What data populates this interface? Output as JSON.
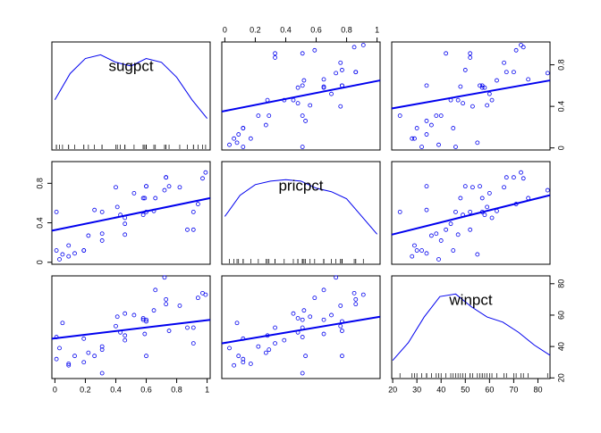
{
  "chart_data": {
    "type": "scatter_matrix",
    "color": "#0000ee",
    "variables": [
      {
        "name": "sugpct",
        "values": [
          0.73,
          0.6,
          0.01,
          0.01,
          0.91,
          0.75,
          0.6,
          0.31,
          0.91,
          0.6,
          0.31,
          0.05,
          0.46,
          0.59,
          0.46,
          0.73,
          0.97,
          0.31,
          0.19,
          0.46,
          0.87,
          0.22,
          0.19,
          0.26,
          0.66,
          0.09,
          0.58,
          0.03,
          0.72,
          0.41,
          0.4,
          0.43,
          0.65,
          0.82,
          0.09,
          0.58,
          0.94,
          0.13,
          0.52,
          0.99
        ],
        "lim": [
          -0.02,
          1.02
        ],
        "ticks": [
          0,
          0.2,
          0.4,
          0.6,
          0.8,
          1
        ],
        "yticks": [
          0,
          0.4,
          0.8
        ],
        "density": {
          "x": [
            0,
            0.1,
            0.2,
            0.3,
            0.4,
            0.5,
            0.6,
            0.7,
            0.8,
            0.9,
            1
          ],
          "y": [
            0.6,
            0.95,
            1.15,
            1.2,
            1.1,
            1.05,
            1.15,
            1.1,
            0.9,
            0.6,
            0.35
          ]
        },
        "dlim": [
          0,
          1.3
        ],
        "fits": [
          null,
          [
            0.35,
            0.65
          ],
          [
            0.38,
            0.65
          ]
        ]
      },
      {
        "name": "pricpct",
        "values": [
          0.86,
          0.51,
          0.12,
          0.51,
          0.51,
          0.77,
          0.77,
          0.51,
          0.33,
          0.77,
          0.29,
          0.08,
          0.45,
          0.65,
          0.39,
          0.86,
          0.85,
          0.22,
          0.12,
          0.28,
          0.33,
          0.27,
          0.12,
          0.53,
          0.65,
          0.06,
          0.48,
          0.03,
          0.73,
          0.56,
          0.76,
          0.48,
          0.52,
          0.76,
          0.17,
          0.65,
          0.59,
          0.09,
          0.7,
          0.91
        ],
        "lim": [
          -0.02,
          1.02
        ],
        "ticks": [
          0,
          0.2,
          0.4,
          0.6,
          0.8,
          1
        ],
        "yticks": [
          0,
          0.4,
          0.8
        ],
        "density": {
          "x": [
            0,
            0.1,
            0.2,
            0.3,
            0.4,
            0.5,
            0.6,
            0.7,
            0.8,
            0.9,
            1
          ],
          "y": [
            0.6,
            0.9,
            1.05,
            1.1,
            1.12,
            1.1,
            1.0,
            0.95,
            0.85,
            0.6,
            0.35
          ]
        },
        "dlim": [
          0,
          1.3
        ],
        "fits": [
          [
            0.32,
            0.65
          ],
          null,
          [
            0.28,
            0.68
          ]
        ]
      },
      {
        "name": "winpct",
        "values": [
          67,
          57,
          32,
          46,
          52,
          50,
          56,
          23,
          42,
          34,
          38,
          55,
          61,
          48,
          44,
          70,
          74,
          40,
          30,
          47,
          52,
          36,
          45,
          34,
          76,
          28,
          58,
          39,
          84,
          59,
          53,
          49,
          63,
          66,
          29,
          57,
          71,
          34,
          60,
          73
        ],
        "lim": [
          19.6,
          85
        ],
        "ticks": [
          20,
          30,
          40,
          50,
          60,
          70,
          80
        ],
        "yticks": [
          20,
          40,
          60,
          80
        ],
        "density": {
          "x": [
            20,
            26.5,
            33,
            39.5,
            46,
            52.5,
            59,
            65.5,
            72,
            78.5,
            85
          ],
          "y": [
            0.005,
            0.012,
            0.022,
            0.03,
            0.031,
            0.026,
            0.022,
            0.02,
            0.016,
            0.011,
            0.007
          ]
        },
        "dlim": [
          0,
          0.036
        ],
        "fits": [
          [
            45,
            57
          ],
          [
            42,
            59
          ],
          null
        ]
      }
    ]
  }
}
